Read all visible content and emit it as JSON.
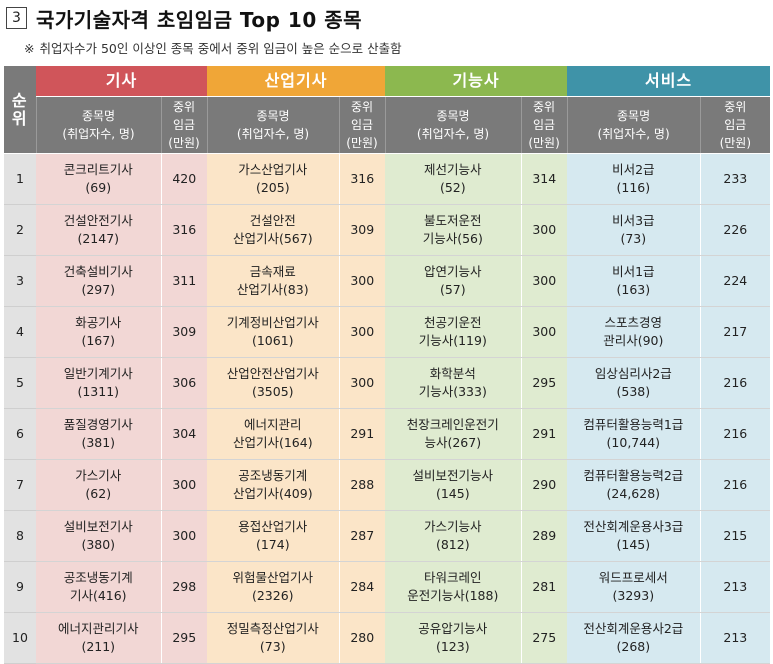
{
  "title": {
    "number": "3",
    "text": "국가기술자격 초임임금 Top 10 종목"
  },
  "subtitle": {
    "mark": "※",
    "text": "취업자수가 50인 이상인 종목 중에서 중위 임금이 높은 순으로 산출함"
  },
  "table": {
    "rank_header": "순\n위",
    "categories": [
      {
        "label": "기사",
        "color": "#d0555a"
      },
      {
        "label": "산업기사",
        "color": "#f0a637"
      },
      {
        "label": "기능사",
        "color": "#8cb84f"
      },
      {
        "label": "서비스",
        "color": "#3f93a8"
      }
    ],
    "name_header": "종목명\n(취업자수, 명)",
    "wage_header": "중위\n임금\n(만원)",
    "rows": [
      {
        "rank": "1",
        "gisa": {
          "name": "콘크리트기사\n(69)",
          "wage": "420"
        },
        "sanup": {
          "name": "가스산업기사\n(205)",
          "wage": "316"
        },
        "gineung": {
          "name": "제선기능사\n(52)",
          "wage": "314"
        },
        "service": {
          "name": "비서2급\n(116)",
          "wage": "233"
        }
      },
      {
        "rank": "2",
        "gisa": {
          "name": "건설안전기사\n(2147)",
          "wage": "316"
        },
        "sanup": {
          "name": "건설안전\n산업기사(567)",
          "wage": "309"
        },
        "gineung": {
          "name": "불도저운전\n기능사(56)",
          "wage": "300"
        },
        "service": {
          "name": "비서3급\n(73)",
          "wage": "226"
        }
      },
      {
        "rank": "3",
        "gisa": {
          "name": "건축설비기사\n(297)",
          "wage": "311"
        },
        "sanup": {
          "name": "금속재료\n산업기사(83)",
          "wage": "300"
        },
        "gineung": {
          "name": "압연기능사\n(57)",
          "wage": "300"
        },
        "service": {
          "name": "비서1급\n(163)",
          "wage": "224"
        }
      },
      {
        "rank": "4",
        "gisa": {
          "name": "화공기사\n(167)",
          "wage": "309"
        },
        "sanup": {
          "name": "기계정비산업기사\n(1061)",
          "wage": "300"
        },
        "gineung": {
          "name": "천공기운전\n기능사(119)",
          "wage": "300"
        },
        "service": {
          "name": "스포츠경영\n관리사(90)",
          "wage": "217"
        }
      },
      {
        "rank": "5",
        "gisa": {
          "name": "일반기계기사\n(1311)",
          "wage": "306"
        },
        "sanup": {
          "name": "산업안전산업기사\n(3505)",
          "wage": "300"
        },
        "gineung": {
          "name": "화학분석\n기능사(333)",
          "wage": "295"
        },
        "service": {
          "name": "임상심리사2급\n(538)",
          "wage": "216"
        }
      },
      {
        "rank": "6",
        "gisa": {
          "name": "품질경영기사\n(381)",
          "wage": "304"
        },
        "sanup": {
          "name": "에너지관리\n산업기사(164)",
          "wage": "291"
        },
        "gineung": {
          "name": "천장크레인운전기\n능사(267)",
          "wage": "291"
        },
        "service": {
          "name": "컴퓨터활용능력1급\n(10,744)",
          "wage": "216"
        }
      },
      {
        "rank": "7",
        "gisa": {
          "name": "가스기사\n(62)",
          "wage": "300"
        },
        "sanup": {
          "name": "공조냉동기계\n산업기사(409)",
          "wage": "288"
        },
        "gineung": {
          "name": "설비보전기능사\n(145)",
          "wage": "290"
        },
        "service": {
          "name": "컴퓨터활용능력2급\n(24,628)",
          "wage": "216"
        }
      },
      {
        "rank": "8",
        "gisa": {
          "name": "설비보전기사\n(380)",
          "wage": "300"
        },
        "sanup": {
          "name": "용접산업기사\n(174)",
          "wage": "287"
        },
        "gineung": {
          "name": "가스기능사\n(812)",
          "wage": "289"
        },
        "service": {
          "name": "전산회계운용사3급\n(145)",
          "wage": "215"
        }
      },
      {
        "rank": "9",
        "gisa": {
          "name": "공조냉동기계\n기사(416)",
          "wage": "298"
        },
        "sanup": {
          "name": "위험물산업기사\n(2326)",
          "wage": "284"
        },
        "gineung": {
          "name": "타워크레인\n운전기능사(188)",
          "wage": "281"
        },
        "service": {
          "name": "워드프로세서\n(3293)",
          "wage": "213"
        }
      },
      {
        "rank": "10",
        "gisa": {
          "name": "에너지관리기사\n(211)",
          "wage": "295"
        },
        "sanup": {
          "name": "정밀측정산업기사\n(73)",
          "wage": "280"
        },
        "gineung": {
          "name": "공유압기능사\n(123)",
          "wage": "275"
        },
        "service": {
          "name": "전산회계운용사2급\n(268)",
          "wage": "213"
        }
      }
    ]
  }
}
